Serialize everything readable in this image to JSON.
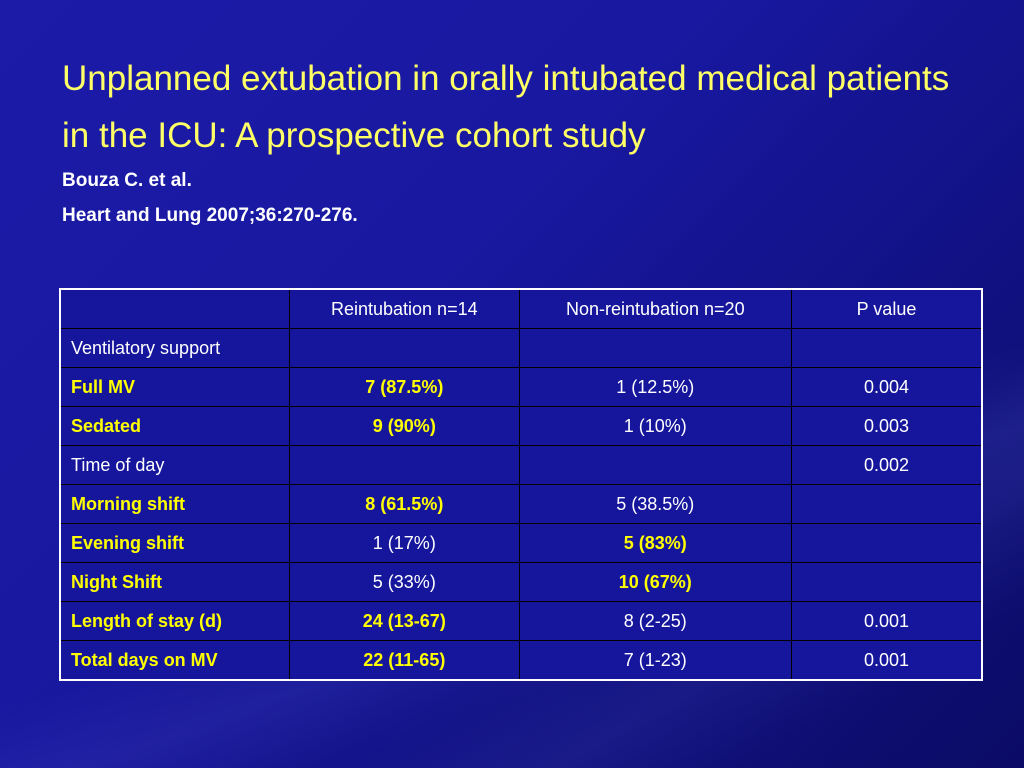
{
  "slide": {
    "title": "Unplanned extubation in orally intubated medical patients in the ICU: A prospective cohort study",
    "author": "Bouza C. et al.",
    "reference": "Heart and Lung 2007;36:270-276."
  },
  "table": {
    "headers": [
      "",
      "Reintubation n=14",
      "Non-reintubation n=20",
      "P value"
    ],
    "rows": [
      {
        "cells": [
          "Ventilatory support",
          "",
          "",
          ""
        ],
        "highlight": [
          false,
          false,
          false,
          false
        ]
      },
      {
        "cells": [
          "Full MV",
          "7 (87.5%)",
          "1 (12.5%)",
          "0.004"
        ],
        "highlight": [
          true,
          true,
          false,
          false
        ]
      },
      {
        "cells": [
          "Sedated",
          "9 (90%)",
          "1 (10%)",
          "0.003"
        ],
        "highlight": [
          true,
          true,
          false,
          false
        ]
      },
      {
        "cells": [
          "Time of day",
          "",
          "",
          "0.002"
        ],
        "highlight": [
          false,
          false,
          false,
          false
        ]
      },
      {
        "cells": [
          "Morning shift",
          "8 (61.5%)",
          "5 (38.5%)",
          ""
        ],
        "highlight": [
          true,
          true,
          false,
          false
        ]
      },
      {
        "cells": [
          "Evening shift",
          "1 (17%)",
          "5 (83%)",
          ""
        ],
        "highlight": [
          true,
          false,
          true,
          false
        ]
      },
      {
        "cells": [
          "Night Shift",
          "5 (33%)",
          "10 (67%)",
          ""
        ],
        "highlight": [
          true,
          false,
          true,
          false
        ]
      },
      {
        "cells": [
          "Length of stay (d)",
          "24 (13-67)",
          "8 (2-25)",
          "0.001"
        ],
        "highlight": [
          true,
          true,
          false,
          false
        ]
      },
      {
        "cells": [
          "Total days on MV",
          "22 (11-65)",
          "7 (1-23)",
          "0.001"
        ],
        "highlight": [
          true,
          true,
          false,
          false
        ]
      }
    ]
  },
  "colors": {
    "background": "#1818a0",
    "title": "#ffff66",
    "highlight": "#ffff00",
    "text": "#ffffff"
  }
}
